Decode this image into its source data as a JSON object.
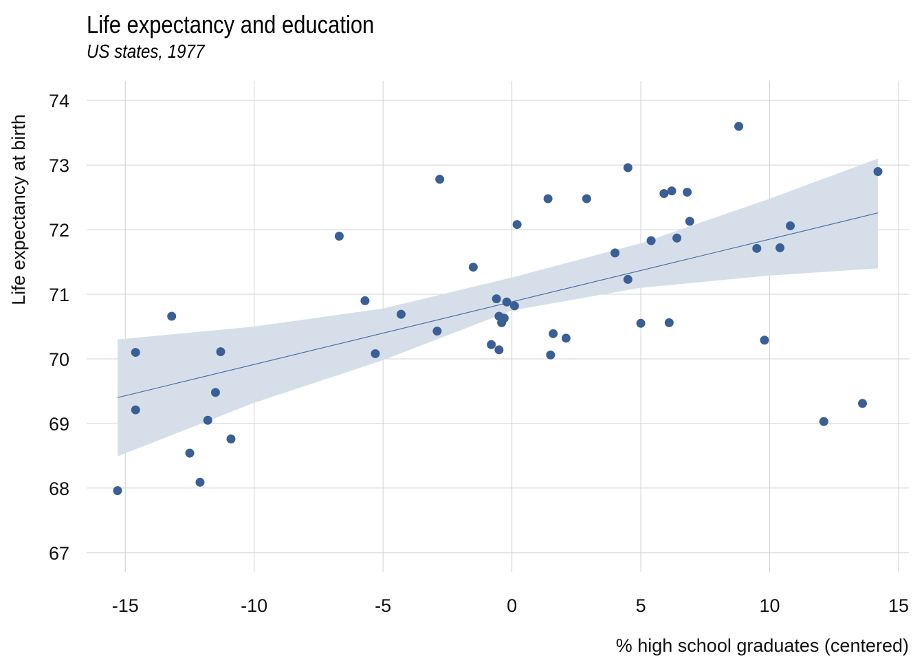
{
  "chart_data": {
    "type": "scatter",
    "title": "Life expectancy and education",
    "subtitle": "US states, 1977",
    "xlabel": "% high school graduates (centered)",
    "ylabel": "Life expectancy at birth",
    "xlim": [
      -16.5,
      15.4
    ],
    "ylim": [
      66.7,
      74.3
    ],
    "x_ticks": [
      -15,
      -10,
      -5,
      0,
      5,
      10,
      15
    ],
    "y_ticks": [
      67,
      68,
      69,
      70,
      71,
      72,
      73,
      74
    ],
    "grid": true,
    "point_color": "#3a5f95",
    "fit_line_color": "#4a6fa5",
    "band_color": "#d6dfe9",
    "points": [
      {
        "x": -15.3,
        "y": 67.96
      },
      {
        "x": -14.6,
        "y": 70.1
      },
      {
        "x": -14.6,
        "y": 69.21
      },
      {
        "x": -13.2,
        "y": 70.66
      },
      {
        "x": -12.5,
        "y": 68.54
      },
      {
        "x": -12.1,
        "y": 68.09
      },
      {
        "x": -11.8,
        "y": 69.05
      },
      {
        "x": -11.5,
        "y": 69.48
      },
      {
        "x": -11.3,
        "y": 70.11
      },
      {
        "x": -10.9,
        "y": 68.76
      },
      {
        "x": -6.7,
        "y": 71.9
      },
      {
        "x": -5.7,
        "y": 70.9
      },
      {
        "x": -5.3,
        "y": 70.08
      },
      {
        "x": -4.3,
        "y": 70.69
      },
      {
        "x": -2.9,
        "y": 70.43
      },
      {
        "x": -2.8,
        "y": 72.78
      },
      {
        "x": -1.5,
        "y": 71.42
      },
      {
        "x": -0.8,
        "y": 70.22
      },
      {
        "x": -0.6,
        "y": 70.93
      },
      {
        "x": -0.5,
        "y": 70.66
      },
      {
        "x": -0.5,
        "y": 70.14
      },
      {
        "x": -0.4,
        "y": 70.56
      },
      {
        "x": -0.3,
        "y": 70.63
      },
      {
        "x": -0.2,
        "y": 70.88
      },
      {
        "x": 0.1,
        "y": 70.82
      },
      {
        "x": 0.2,
        "y": 72.08
      },
      {
        "x": 1.4,
        "y": 72.48
      },
      {
        "x": 1.5,
        "y": 70.06
      },
      {
        "x": 1.6,
        "y": 70.39
      },
      {
        "x": 2.1,
        "y": 70.32
      },
      {
        "x": 2.9,
        "y": 72.48
      },
      {
        "x": 4.0,
        "y": 71.64
      },
      {
        "x": 4.5,
        "y": 72.96
      },
      {
        "x": 4.5,
        "y": 71.23
      },
      {
        "x": 5.0,
        "y": 70.55
      },
      {
        "x": 5.4,
        "y": 71.83
      },
      {
        "x": 5.9,
        "y": 72.56
      },
      {
        "x": 6.1,
        "y": 70.56
      },
      {
        "x": 6.2,
        "y": 72.6
      },
      {
        "x": 6.4,
        "y": 71.87
      },
      {
        "x": 6.8,
        "y": 72.58
      },
      {
        "x": 6.9,
        "y": 72.13
      },
      {
        "x": 8.8,
        "y": 73.6
      },
      {
        "x": 9.5,
        "y": 71.71
      },
      {
        "x": 9.8,
        "y": 70.29
      },
      {
        "x": 10.4,
        "y": 71.72
      },
      {
        "x": 10.8,
        "y": 72.06
      },
      {
        "x": 12.1,
        "y": 69.03
      },
      {
        "x": 13.6,
        "y": 69.31
      },
      {
        "x": 14.2,
        "y": 72.9
      }
    ],
    "fit_line": {
      "x": [
        -15.3,
        14.2
      ],
      "y": [
        69.4,
        72.26
      ]
    },
    "confidence_band": {
      "x": [
        -15.3,
        -10,
        -5,
        0,
        5,
        10,
        14.2
      ],
      "upper": [
        70.3,
        70.5,
        70.78,
        71.26,
        71.79,
        72.48,
        73.1
      ],
      "lower": [
        68.49,
        69.32,
        69.98,
        70.75,
        71.1,
        71.29,
        71.4
      ]
    }
  }
}
